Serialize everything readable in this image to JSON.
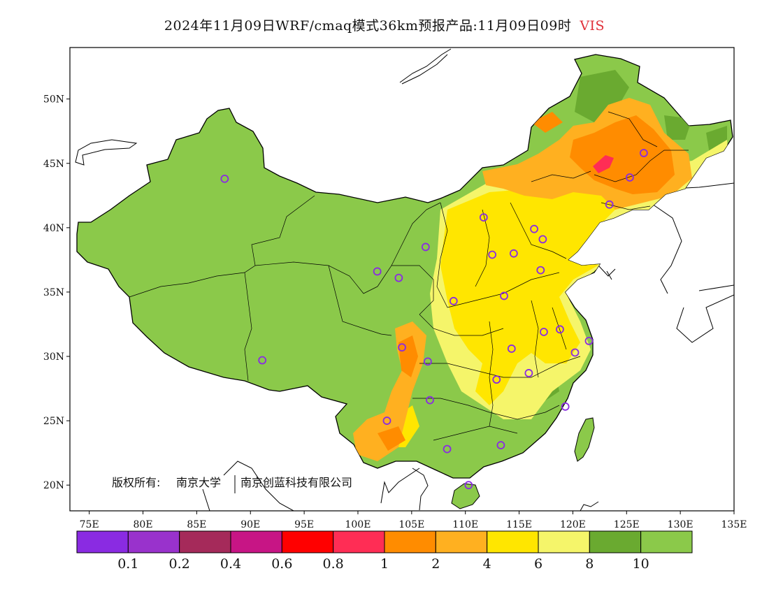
{
  "title": {
    "text": "2024年11月09日WRF/cmaq模式36km预报产品:11月09日09时",
    "variable": "VIS"
  },
  "map": {
    "lon_range": [
      73.2,
      135
    ],
    "lat_range": [
      18,
      54
    ],
    "lon_ticks": [
      "75E",
      "80E",
      "85E",
      "90E",
      "95E",
      "100E",
      "105E",
      "110E",
      "115E",
      "120E",
      "125E",
      "130E",
      "135E"
    ],
    "lat_ticks": [
      "50N",
      "45N",
      "40N",
      "35N",
      "30N",
      "25N",
      "20N"
    ],
    "copyright": {
      "label": "版权所有:",
      "owner1": "南京大学",
      "owner2": "南京创蓝科技有限公司"
    }
  },
  "stations": [
    {
      "lon": 87.6,
      "lat": 43.8
    },
    {
      "lon": 91.1,
      "lat": 29.7
    },
    {
      "lon": 101.8,
      "lat": 36.6
    },
    {
      "lon": 103.8,
      "lat": 36.1
    },
    {
      "lon": 106.3,
      "lat": 38.5
    },
    {
      "lon": 104.1,
      "lat": 30.7
    },
    {
      "lon": 106.5,
      "lat": 29.6
    },
    {
      "lon": 106.7,
      "lat": 26.6
    },
    {
      "lon": 102.7,
      "lat": 25.0
    },
    {
      "lon": 108.9,
      "lat": 34.3
    },
    {
      "lon": 111.7,
      "lat": 40.8
    },
    {
      "lon": 112.5,
      "lat": 37.9
    },
    {
      "lon": 113.6,
      "lat": 34.7
    },
    {
      "lon": 114.5,
      "lat": 38.0
    },
    {
      "lon": 116.4,
      "lat": 39.9
    },
    {
      "lon": 117.2,
      "lat": 39.1
    },
    {
      "lon": 117.0,
      "lat": 36.7
    },
    {
      "lon": 117.3,
      "lat": 31.9
    },
    {
      "lon": 114.3,
      "lat": 30.6
    },
    {
      "lon": 112.9,
      "lat": 28.2
    },
    {
      "lon": 115.9,
      "lat": 28.7
    },
    {
      "lon": 118.8,
      "lat": 32.1
    },
    {
      "lon": 120.2,
      "lat": 30.3
    },
    {
      "lon": 121.5,
      "lat": 31.2
    },
    {
      "lon": 119.3,
      "lat": 26.1
    },
    {
      "lon": 113.3,
      "lat": 23.1
    },
    {
      "lon": 108.3,
      "lat": 22.8
    },
    {
      "lon": 110.3,
      "lat": 20.0
    },
    {
      "lon": 123.4,
      "lat": 41.8
    },
    {
      "lon": 125.3,
      "lat": 43.9
    },
    {
      "lon": 126.6,
      "lat": 45.8
    }
  ],
  "legend": {
    "colors": [
      "#8a2be2",
      "#9932cc",
      "#a52a5a",
      "#c71585",
      "#ff0000",
      "#ff2d55",
      "#ff8c00",
      "#ffb020",
      "#ffe600",
      "#f5f56a",
      "#6aaa30",
      "#8bc94a"
    ],
    "labels": [
      "0.1",
      "0.2",
      "0.4",
      "0.6",
      "0.8",
      "1",
      "2",
      "4",
      "6",
      "8",
      "10"
    ]
  }
}
